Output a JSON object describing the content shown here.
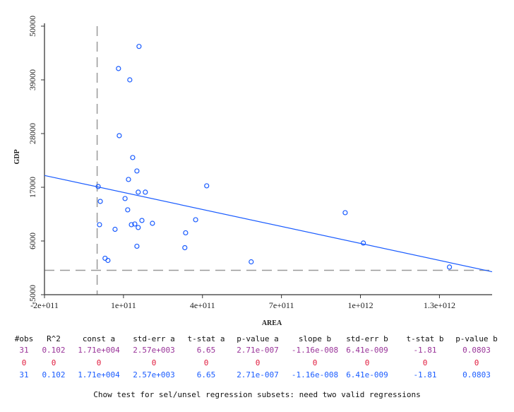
{
  "chart_data": {
    "type": "scatter",
    "xlabel": "AREA",
    "ylabel": "GDP",
    "xlim": [
      -200000000000.0,
      1500000000000.0
    ],
    "ylim": [
      -5000,
      50000
    ],
    "xticks": [
      -200000000000.0,
      100000000000.0,
      400000000000.0,
      700000000000.0,
      1000000000000.0,
      1300000000000.0
    ],
    "xtick_labels": [
      "-2e+011",
      "1e+011",
      "4e+011",
      "7e+011",
      "1e+012",
      "1.3e+012"
    ],
    "yticks": [
      -5000,
      6000,
      17000,
      28000,
      39000,
      50000
    ],
    "ytick_labels": [
      "-5000",
      "6000",
      "17000",
      "28000",
      "39000",
      "50000"
    ],
    "grid": false,
    "point_color": "#1a5cff",
    "line_color": "#1a5cff",
    "reference_line_color": "#999999",
    "reference_lines": {
      "x": 0,
      "y": 0
    },
    "regression": {
      "intercept": 17100,
      "slope": -1.16e-08
    },
    "points": [
      [
        159000000000.0,
        45850
      ],
      [
        81000000000.0,
        41320
      ],
      [
        124000000000.0,
        39000
      ],
      [
        84000000000.0,
        27570
      ],
      [
        135000000000.0,
        23090
      ],
      [
        151000000000.0,
        20340
      ],
      [
        119000000000.0,
        18600
      ],
      [
        4000000000.0,
        17150
      ],
      [
        156000000000.0,
        16000
      ],
      [
        183000000000.0,
        16000
      ],
      [
        416000000000.0,
        17300
      ],
      [
        106000000000.0,
        14690
      ],
      [
        12000000000.0,
        14110
      ],
      [
        116000000000.0,
        12380
      ],
      [
        374000000000.0,
        10350
      ],
      [
        170000000000.0,
        10200
      ],
      [
        210000000000.0,
        9620
      ],
      [
        9000000000.0,
        9340
      ],
      [
        130000000000.0,
        9340
      ],
      [
        143000000000.0,
        9480
      ],
      [
        156000000000.0,
        8760
      ],
      [
        68000000000.0,
        8390
      ],
      [
        336000000000.0,
        7670
      ],
      [
        151000000000.0,
        4920
      ],
      [
        333000000000.0,
        4630
      ],
      [
        30000000000.0,
        2460
      ],
      [
        41000000000.0,
        2020
      ],
      [
        585000000000.0,
        1730
      ],
      [
        942000000000.0,
        11800
      ],
      [
        1011000000000.0,
        5580
      ],
      [
        1338000000000.0,
        660
      ]
    ]
  },
  "stats": {
    "headers": [
      "#obs",
      "R^2",
      "const a",
      "std-err a",
      "t-stat a",
      "p-value a",
      "slope b",
      "std-err b",
      "t-stat b",
      "p-value b"
    ],
    "rows": [
      {
        "color": "#993399",
        "values": [
          "31",
          "0.102",
          "1.71e+004",
          "2.57e+003",
          "6.65",
          "2.71e-007",
          "-1.16e-008",
          "6.41e-009",
          "-1.81",
          "0.0803"
        ]
      },
      {
        "color": "#e0193c",
        "values": [
          "0",
          "0",
          "0",
          "0",
          "0",
          "0",
          "0",
          "0",
          "0",
          "0"
        ]
      },
      {
        "color": "#1a5cff",
        "values": [
          "31",
          "0.102",
          "1.71e+004",
          "2.57e+003",
          "6.65",
          "2.71e-007",
          "-1.16e-008",
          "6.41e-009",
          "-1.81",
          "0.0803"
        ]
      }
    ],
    "chow_text": "Chow test for sel/unsel regression subsets: need two valid regressions"
  }
}
